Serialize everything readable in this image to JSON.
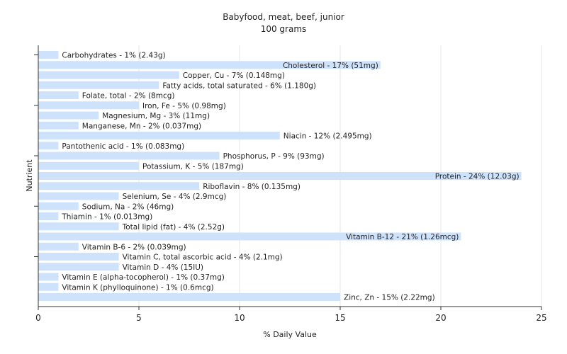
{
  "chart_data": {
    "type": "bar",
    "orientation": "horizontal",
    "title": "Babyfood, meat, beef, junior",
    "subtitle": "100 grams",
    "xlabel": "% Daily Value",
    "ylabel": "Nutrient",
    "xlim": [
      0,
      25
    ],
    "xticks": [
      0,
      5,
      10,
      15,
      20,
      25
    ],
    "grid": true,
    "bar_color": "#cfe2fb",
    "categories": [
      "Carbohydrates",
      "Cholesterol",
      "Copper, Cu",
      "Fatty acids, total saturated",
      "Folate, total",
      "Iron, Fe",
      "Magnesium, Mg",
      "Manganese, Mn",
      "Niacin",
      "Pantothenic acid",
      "Phosphorus, P",
      "Potassium, K",
      "Protein",
      "Riboflavin",
      "Selenium, Se",
      "Sodium, Na",
      "Thiamin",
      "Total lipid (fat)",
      "Vitamin B-12",
      "Vitamin B-6",
      "Vitamin C, total ascorbic acid",
      "Vitamin D",
      "Vitamin E (alpha-tocopherol)",
      "Vitamin K (phylloquinone)",
      "Zinc, Zn"
    ],
    "values": [
      1,
      17,
      7,
      6,
      2,
      5,
      3,
      2,
      12,
      1,
      9,
      5,
      24,
      8,
      4,
      2,
      1,
      4,
      21,
      2,
      4,
      4,
      1,
      1,
      15
    ],
    "labels": [
      "Carbohydrates - 1% (2.43g)",
      "Cholesterol - 17% (51mg)",
      "Copper, Cu - 7% (0.148mg)",
      "Fatty acids, total saturated - 6% (1.180g)",
      "Folate, total - 2% (8mcg)",
      "Iron, Fe - 5% (0.98mg)",
      "Magnesium, Mg - 3% (11mg)",
      "Manganese, Mn - 2% (0.037mg)",
      "Niacin - 12% (2.495mg)",
      "Pantothenic acid - 1% (0.083mg)",
      "Phosphorus, P - 9% (93mg)",
      "Potassium, K - 5% (187mg)",
      "Protein - 24% (12.03g)",
      "Riboflavin - 8% (0.135mg)",
      "Selenium, Se - 4% (2.9mcg)",
      "Sodium, Na - 2% (46mg)",
      "Thiamin - 1% (0.013mg)",
      "Total lipid (fat) - 4% (2.52g)",
      "Vitamin B-12 - 21% (1.26mcg)",
      "Vitamin B-6 - 2% (0.039mg)",
      "Vitamin C, total ascorbic acid - 4% (2.1mg)",
      "Vitamin D - 4% (15IU)",
      "Vitamin E (alpha-tocopherol) - 1% (0.37mg)",
      "Vitamin K (phylloquinone) - 1% (0.6mcg)",
      "Zinc, Zn - 15% (2.22mg)"
    ]
  }
}
